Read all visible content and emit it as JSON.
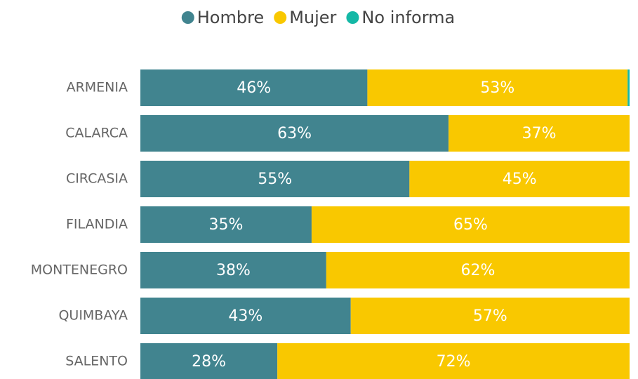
{
  "chart_data": {
    "type": "bar",
    "orientation": "horizontal",
    "stacked": true,
    "categories": [
      "ARMENIA",
      "CALARCA",
      "CIRCASIA",
      "FILANDIA",
      "MONTENEGRO",
      "QUIMBAYA",
      "SALENTO"
    ],
    "series": [
      {
        "name": "Hombre",
        "color": "#41848f",
        "values": [
          46.4,
          63,
          55,
          35,
          38,
          43,
          28
        ],
        "value_labels": [
          "46%",
          "63%",
          "55%",
          "35%",
          "38%",
          "43%",
          "28%"
        ]
      },
      {
        "name": "Mujer",
        "color": "#f9c800",
        "values": [
          53.2,
          37,
          45,
          65,
          62,
          57,
          72
        ],
        "value_labels": [
          "53%",
          "37%",
          "45%",
          "65%",
          "62%",
          "57%",
          "72%"
        ]
      },
      {
        "name": "No informa",
        "color": "#14b8a6",
        "values": [
          0.4,
          0,
          0,
          0,
          0,
          0,
          0
        ]
      }
    ],
    "xlim": [
      0,
      100
    ],
    "legend": "top"
  }
}
